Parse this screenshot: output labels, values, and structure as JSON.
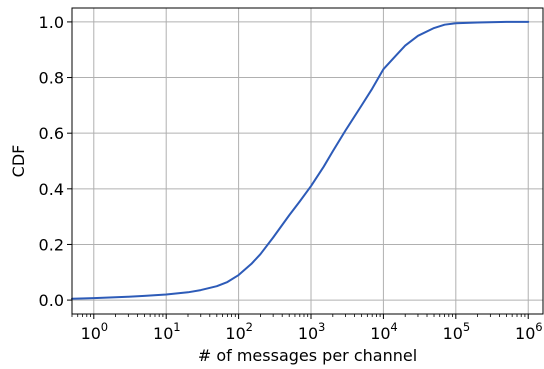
{
  "chart_data": {
    "type": "line",
    "title": "",
    "xlabel": "# of messages per channel",
    "ylabel": "CDF",
    "x_scale": "log",
    "xlim": [
      0.5,
      1600000
    ],
    "ylim": [
      -0.05,
      1.05
    ],
    "grid": true,
    "x_ticks": [
      {
        "value": 1,
        "base": "10",
        "exp": "0"
      },
      {
        "value": 10,
        "base": "10",
        "exp": "1"
      },
      {
        "value": 100,
        "base": "10",
        "exp": "2"
      },
      {
        "value": 1000,
        "base": "10",
        "exp": "3"
      },
      {
        "value": 10000,
        "base": "10",
        "exp": "4"
      },
      {
        "value": 100000,
        "base": "10",
        "exp": "5"
      },
      {
        "value": 1000000,
        "base": "10",
        "exp": "6"
      }
    ],
    "y_ticks": [
      {
        "value": 0.0,
        "label": "0.0"
      },
      {
        "value": 0.2,
        "label": "0.2"
      },
      {
        "value": 0.4,
        "label": "0.4"
      },
      {
        "value": 0.6,
        "label": "0.6"
      },
      {
        "value": 0.8,
        "label": "0.8"
      },
      {
        "value": 1.0,
        "label": "1.0"
      }
    ],
    "series": [
      {
        "color": "#2d5bb8",
        "points": [
          [
            0.5,
            0.005
          ],
          [
            1,
            0.007
          ],
          [
            2,
            0.01
          ],
          [
            3,
            0.012
          ],
          [
            5,
            0.015
          ],
          [
            10,
            0.02
          ],
          [
            20,
            0.028
          ],
          [
            30,
            0.036
          ],
          [
            50,
            0.05
          ],
          [
            70,
            0.065
          ],
          [
            100,
            0.09
          ],
          [
            150,
            0.13
          ],
          [
            200,
            0.165
          ],
          [
            300,
            0.225
          ],
          [
            500,
            0.305
          ],
          [
            700,
            0.355
          ],
          [
            1000,
            0.41
          ],
          [
            1500,
            0.48
          ],
          [
            2000,
            0.535
          ],
          [
            3000,
            0.61
          ],
          [
            5000,
            0.7
          ],
          [
            7000,
            0.76
          ],
          [
            10000,
            0.83
          ],
          [
            15000,
            0.88
          ],
          [
            20000,
            0.915
          ],
          [
            30000,
            0.95
          ],
          [
            50000,
            0.978
          ],
          [
            70000,
            0.99
          ],
          [
            100000,
            0.995
          ],
          [
            200000,
            0.998
          ],
          [
            500000,
            1.0
          ],
          [
            1000000,
            1.0
          ]
        ]
      }
    ]
  }
}
